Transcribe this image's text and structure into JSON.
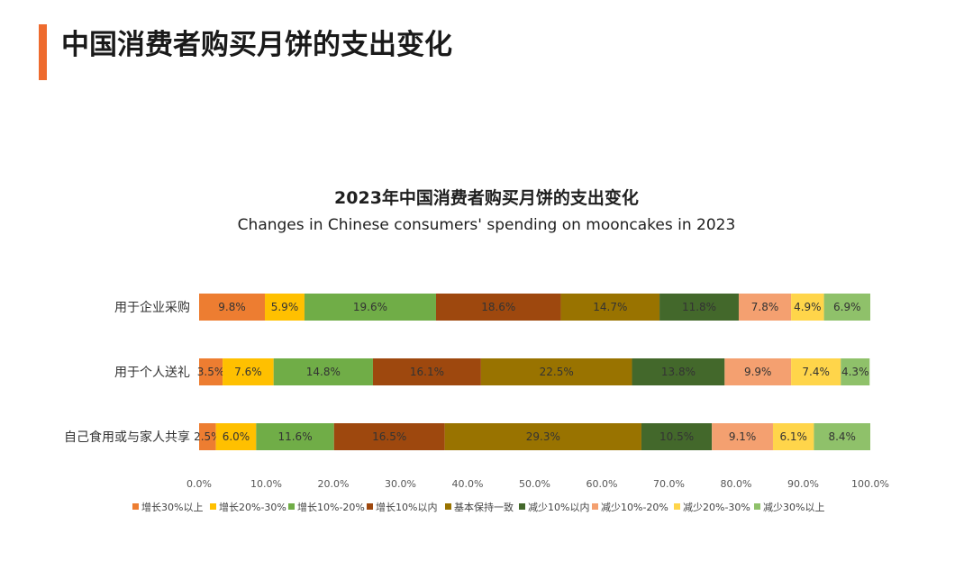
{
  "page": {
    "title": "中国消费者购买月饼的支出变化"
  },
  "chart_data": {
    "type": "bar",
    "orientation": "horizontal",
    "stacked": true,
    "title": "2023年中国消费者购买月饼的支出变化",
    "subtitle": "Changes in Chinese consumers' spending on mooncakes in 2023",
    "categories": [
      "用于企业采购",
      "用于个人送礼",
      "自己食用或与家人共享"
    ],
    "series": [
      {
        "name": "增长30%以上",
        "color": "#ed7d31",
        "values": [
          9.8,
          3.5,
          2.5
        ],
        "labels": [
          "9.8%",
          "3.5%",
          "2.5%"
        ]
      },
      {
        "name": "增长20%-30%",
        "color": "#ffc000",
        "values": [
          5.9,
          7.6,
          6.0
        ],
        "labels": [
          "5.9%",
          "7.6%",
          "6.0%"
        ]
      },
      {
        "name": "增长10%-20%",
        "color": "#70ad47",
        "values": [
          19.6,
          14.8,
          11.6
        ],
        "labels": [
          "19.6%",
          "14.8%",
          "11.6%"
        ]
      },
      {
        "name": "增长10%以内",
        "color": "#9e480e",
        "values": [
          18.6,
          16.1,
          16.5
        ],
        "labels": [
          "18.6%",
          "16.1%",
          "16.5%"
        ]
      },
      {
        "name": "基本保持一致",
        "color": "#997300",
        "values": [
          14.7,
          22.5,
          29.3
        ],
        "labels": [
          "14.7%",
          "22.5%",
          "29.3%"
        ]
      },
      {
        "name": "减少10%以内",
        "color": "#43682b",
        "values": [
          11.8,
          13.8,
          10.5
        ],
        "labels": [
          "11.8%",
          "13.8%",
          "10.5%"
        ]
      },
      {
        "name": "减少10%-20%",
        "color": "#f4a070",
        "values": [
          7.8,
          9.9,
          9.1
        ],
        "labels": [
          "7.8%",
          "9.9%",
          "9.1%"
        ]
      },
      {
        "name": "减少20%-30%",
        "color": "#ffd54a",
        "values": [
          4.9,
          7.4,
          6.1
        ],
        "labels": [
          "4.9%",
          "7.4%",
          "6.1%"
        ]
      },
      {
        "name": "减少30%以上",
        "color": "#8fc16a",
        "values": [
          6.9,
          4.3,
          8.4
        ],
        "labels": [
          "6.9%",
          "4.3%",
          "8.4%"
        ]
      }
    ],
    "xlim": [
      0,
      100
    ],
    "xticks": [
      "0.0%",
      "10.0%",
      "20.0%",
      "30.0%",
      "40.0%",
      "50.0%",
      "60.0%",
      "70.0%",
      "80.0%",
      "90.0%",
      "100.0%"
    ],
    "grid": false,
    "legend": "bottom"
  }
}
